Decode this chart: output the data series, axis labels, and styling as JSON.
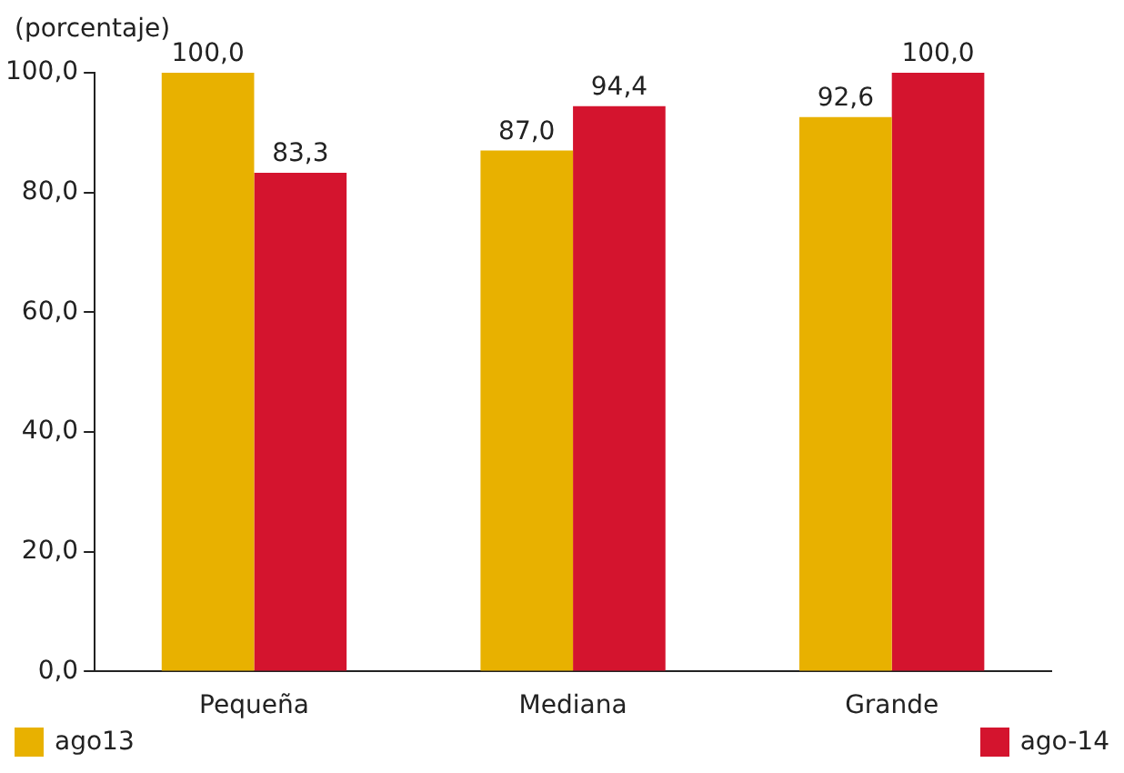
{
  "chart_data": {
    "type": "bar",
    "ylabel": "(porcentaje)",
    "categories": [
      "Pequeña",
      "Mediana",
      "Grande"
    ],
    "series": [
      {
        "name": "ago13",
        "color": "#e8b100",
        "values": [
          100.0,
          87.0,
          92.6
        ],
        "value_labels": [
          "100,0",
          "87,0",
          "92,6"
        ]
      },
      {
        "name": "ago-14",
        "color": "#d4142e",
        "values": [
          83.3,
          94.4,
          100.0
        ],
        "value_labels": [
          "83,3",
          "94,4",
          "100,0"
        ]
      }
    ],
    "ylim": [
      0,
      100
    ],
    "yticks": [
      {
        "value": 0,
        "label": "0,0"
      },
      {
        "value": 20,
        "label": "20,0"
      },
      {
        "value": 40,
        "label": "40,0"
      },
      {
        "value": 60,
        "label": "60,0"
      },
      {
        "value": 80,
        "label": "80,0"
      },
      {
        "value": 100,
        "label": "100,0"
      }
    ],
    "grid": false,
    "legend": "bottom"
  }
}
